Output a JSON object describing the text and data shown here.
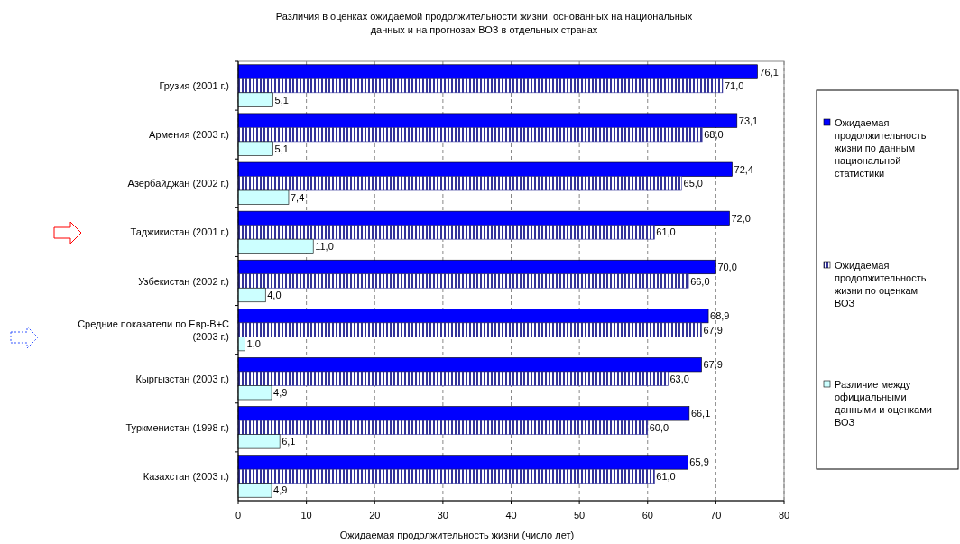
{
  "chart_data": {
    "type": "bar",
    "orientation": "horizontal",
    "title": "Различия в оценках ожидаемой продолжительности жизни, основанных на национальных данных и на прогнозах ВОЗ в отдельных странах",
    "xlabel": "Ожидаемая продолжительность жизни (число лет)",
    "categories": [
      "Грузия (2001 г.)",
      "Армения (2003 г.)",
      "Азербайджан (2002 г.)",
      "Таджикистан (2001 г.)",
      "Узбекистан (2002 г.)",
      "Средние показатели по Евр-В+С (2003 г.)",
      "Кыргызстан (2003 г.)",
      "Туркменистан (1998 г.)",
      "Казахстан (2003 г.)"
    ],
    "series": [
      {
        "name": "Ожидаемая продолжительность жизни по данным национальной статистики",
        "color": "#0000ff",
        "values": [
          76.1,
          73.1,
          72.4,
          72.0,
          70.0,
          68.9,
          67.9,
          66.1,
          65.9
        ],
        "value_labels": [
          "76,1",
          "73,1",
          "72,4",
          "72,0",
          "70,0",
          "68,9",
          "67,9",
          "66,1",
          "65,9"
        ]
      },
      {
        "name": "Ожидаемая продолжительность жизни по оценкам ВОЗ",
        "color": "#333399",
        "values": [
          71.0,
          68.0,
          65.0,
          61.0,
          66.0,
          67.9,
          63.0,
          60.0,
          61.0
        ],
        "value_labels": [
          "71,0",
          "68,0",
          "65,0",
          "61,0",
          "66,0",
          "67,9",
          "63,0",
          "60,0",
          "61,0"
        ]
      },
      {
        "name": "Различие между официальными данными и оценками ВОЗ",
        "color": "#ccffff",
        "values": [
          5.1,
          5.1,
          7.4,
          11.0,
          4.0,
          1.0,
          4.9,
          6.1,
          4.9
        ],
        "value_labels": [
          "5,1",
          "5,1",
          "7,4",
          "11,0",
          "4,0",
          "1,0",
          "4,9",
          "6,1",
          "4,9"
        ]
      }
    ],
    "xlim": [
      0,
      80
    ],
    "xticks": [
      0,
      10,
      20,
      30,
      40,
      50,
      60,
      70,
      80
    ],
    "grid": "x",
    "legend": "right"
  }
}
